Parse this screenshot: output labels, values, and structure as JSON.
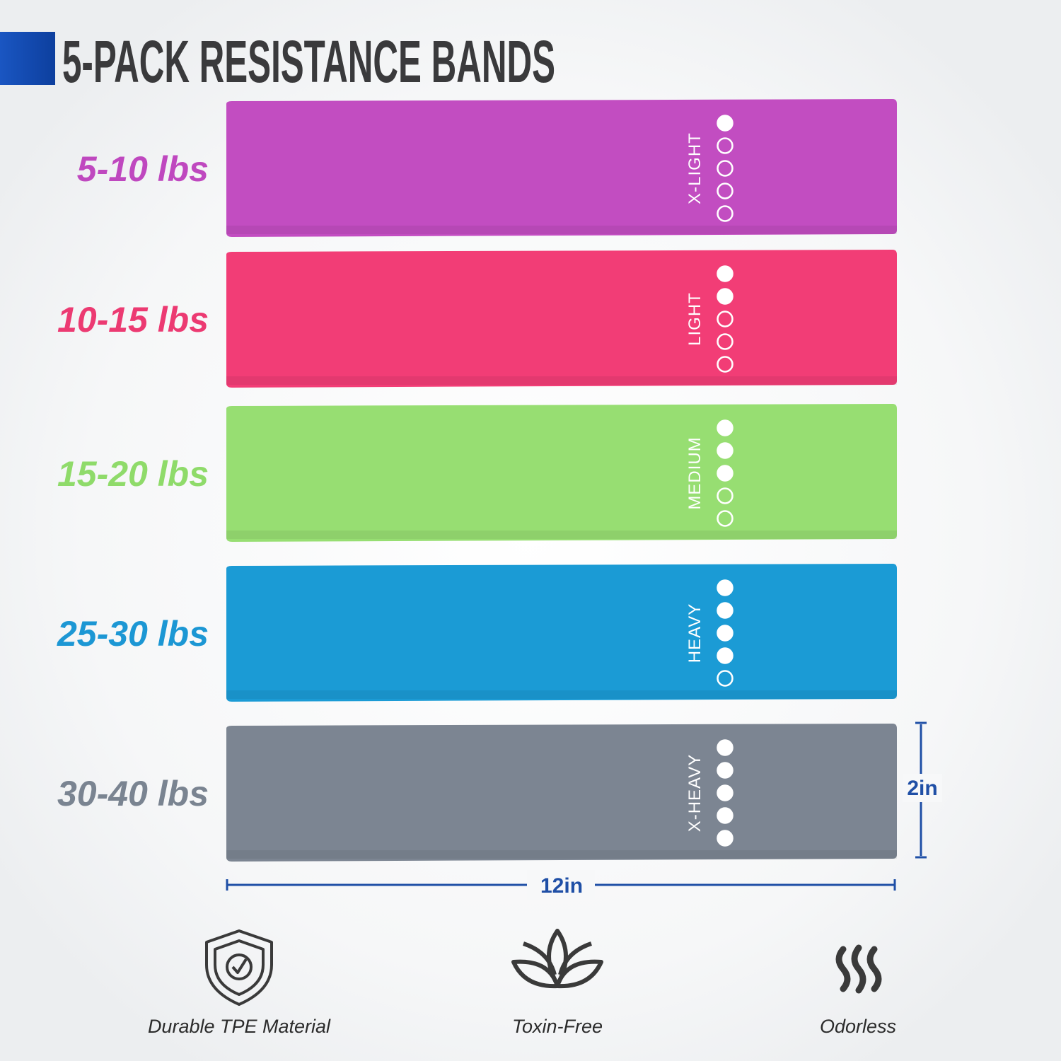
{
  "header": {
    "title": "5-PACK RESISTANCE BANDS"
  },
  "scale_dots": 5,
  "bands": [
    {
      "weight": "5-10 lbs",
      "level": "X-LIGHT",
      "filled_dots": 1,
      "color": "#c24dc1",
      "label_color": "#bf48bf"
    },
    {
      "weight": "10-15 lbs",
      "level": "LIGHT",
      "filled_dots": 2,
      "color": "#f23d76",
      "label_color": "#ec3a72"
    },
    {
      "weight": "15-20 lbs",
      "level": "MEDIUM",
      "filled_dots": 3,
      "color": "#97de72",
      "label_color": "#8fdb6a"
    },
    {
      "weight": "25-30 lbs",
      "level": "HEAVY",
      "filled_dots": 4,
      "color": "#1b9bd5",
      "label_color": "#1c97d4"
    },
    {
      "weight": "30-40 lbs",
      "level": "X-HEAVY",
      "filled_dots": 5,
      "color": "#7c8592",
      "label_color": "#7a8491"
    }
  ],
  "dimensions": {
    "height": "2in",
    "width": "12in"
  },
  "features": [
    {
      "label": "Durable TPE Material"
    },
    {
      "label": "Toxin-Free"
    },
    {
      "label": "Odorless"
    }
  ]
}
